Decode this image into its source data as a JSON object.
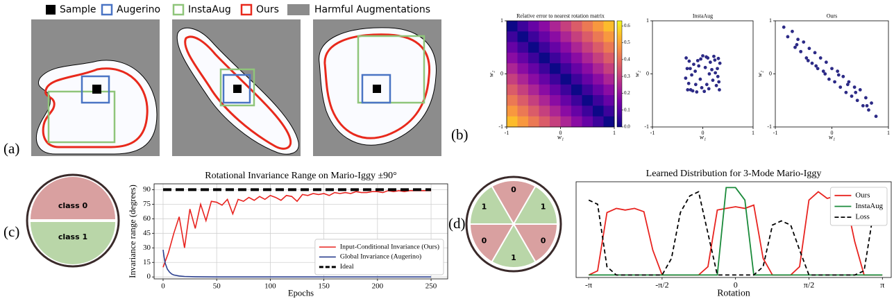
{
  "panel_labels": [
    "(a)",
    "(b)",
    "(c)",
    "(d)"
  ],
  "legend_a": [
    "Sample",
    "Augerino",
    "InstaAug",
    "Ours",
    "Harmful Augmentations"
  ],
  "circle_c": [
    "class 0",
    "class 1"
  ],
  "circle_d": [
    "0",
    "1",
    "0",
    "1",
    "0",
    "1"
  ],
  "chart_data": [
    {
      "type": "heatmap",
      "title": "Relative error to nearest rotation matrix",
      "xlabel": "w₁",
      "ylabel": "w₂",
      "xlim": [
        -1,
        1
      ],
      "ylim": [
        -1,
        1
      ],
      "xticks": [
        -1,
        0,
        1
      ],
      "yticks": [
        -1,
        0,
        1
      ],
      "colormap": "plasma",
      "clim": [
        0,
        0.63
      ],
      "cticks": [
        {
          "value": 0,
          "label": "0.0"
        },
        {
          "value": 0.1,
          "label": "0.1"
        },
        {
          "value": 0.2,
          "label": "0.2"
        },
        {
          "value": 0.3,
          "label": "0.3"
        },
        {
          "value": 0.4,
          "label": "0.4"
        },
        {
          "value": 0.5,
          "label": "0.5"
        },
        {
          "value": 0.6,
          "label": "0.6"
        }
      ],
      "values": [
        [
          0,
          0.06,
          0.12,
          0.18,
          0.24,
          0.3,
          0.36,
          0.42,
          0.48,
          0.54
        ],
        [
          0.06,
          0,
          0.06,
          0.12,
          0.18,
          0.24,
          0.3,
          0.36,
          0.42,
          0.48
        ],
        [
          0.12,
          0.06,
          0,
          0.06,
          0.12,
          0.18,
          0.24,
          0.3,
          0.36,
          0.42
        ],
        [
          0.18,
          0.12,
          0.06,
          0,
          0.06,
          0.12,
          0.18,
          0.24,
          0.3,
          0.36
        ],
        [
          0.24,
          0.18,
          0.12,
          0.06,
          0,
          0.06,
          0.12,
          0.18,
          0.24,
          0.3
        ],
        [
          0.3,
          0.24,
          0.18,
          0.12,
          0.06,
          0,
          0.06,
          0.12,
          0.18,
          0.24
        ],
        [
          0.36,
          0.3,
          0.24,
          0.18,
          0.12,
          0.06,
          0,
          0.06,
          0.12,
          0.18
        ],
        [
          0.42,
          0.36,
          0.3,
          0.24,
          0.18,
          0.12,
          0.06,
          0,
          0.06,
          0.12
        ],
        [
          0.48,
          0.42,
          0.36,
          0.3,
          0.24,
          0.18,
          0.12,
          0.06,
          0,
          0.06
        ],
        [
          0.54,
          0.48,
          0.42,
          0.36,
          0.3,
          0.24,
          0.18,
          0.12,
          0.06,
          0
        ]
      ]
    },
    {
      "type": "scatter",
      "title": "InstaAug",
      "xlabel": "w₁",
      "ylabel": "w₂",
      "color": "#2c2a86",
      "xlim": [
        -1,
        1
      ],
      "ylim": [
        -1,
        1
      ],
      "xticks": [
        -1,
        0,
        1
      ],
      "yticks": [
        -1,
        0,
        1
      ],
      "x": [
        -0.33,
        -0.2,
        0.05,
        0.3,
        -0.1,
        0.22,
        -0.28,
        0.12,
        -0.05,
        0.34,
        -0.15,
        0.27,
        0.0,
        -0.31,
        0.18,
        -0.24,
        0.08,
        0.31,
        -0.12,
        0.15,
        -0.34,
        0.25,
        -0.02,
        0.1,
        -0.18,
        0.33,
        -0.27,
        0.2,
        -0.08,
        0.29,
        -0.22,
        0.03,
        0.13,
        -0.3,
        0.24,
        -0.14,
        0.07,
        -0.04,
        0.32,
        -0.25
      ],
      "y": [
        0.3,
        -0.32,
        0.12,
        -0.05,
        0.25,
        0.33,
        -0.18,
        -0.28,
        -0.1,
        0.2,
        0.05,
        -0.22,
        0.34,
        0.1,
        0.08,
        -0.3,
        -0.2,
        0.29,
        -0.34,
        0.22,
        -0.08,
        0.02,
        -0.26,
        0.3,
        0.18,
        -0.3,
        0.24,
        -0.12,
        0.15,
        0.1,
        -0.02,
        -0.33,
        0.0,
        -0.3,
        0.26,
        -0.2,
        0.32,
        0.28,
        -0.15,
        0.1
      ]
    },
    {
      "type": "scatter",
      "title": "Ours",
      "xlabel": "w₁",
      "ylabel": "w₂",
      "color": "#2c2a86",
      "xlim": [
        -1,
        1
      ],
      "ylim": [
        -1,
        1
      ],
      "xticks": [
        -1,
        0,
        1
      ],
      "yticks": [
        -1,
        0,
        1
      ],
      "x": [
        -0.85,
        -0.78,
        -0.7,
        -0.65,
        -0.6,
        -0.55,
        -0.5,
        -0.45,
        -0.4,
        -0.35,
        -0.3,
        -0.25,
        -0.2,
        -0.15,
        -0.1,
        -0.05,
        0,
        0.05,
        0.1,
        0.15,
        0.2,
        0.25,
        0.3,
        0.35,
        0.4,
        0.45,
        0.5,
        0.55,
        0.6,
        0.65,
        0.7,
        0.78,
        -0.42,
        -0.12,
        0.12,
        0.42,
        -0.62,
        0.62,
        -0.28,
        0.28
      ],
      "y": [
        0.88,
        0.7,
        0.8,
        0.5,
        0.65,
        0.42,
        0.6,
        0.3,
        0.48,
        0.2,
        0.4,
        0.1,
        0.3,
        0.05,
        0.22,
        -0.1,
        0.1,
        -0.15,
        0.05,
        -0.25,
        -0.05,
        -0.35,
        -0.15,
        -0.42,
        -0.25,
        -0.5,
        -0.3,
        -0.6,
        -0.45,
        -0.68,
        -0.55,
        -0.8,
        0.25,
        0.0,
        -0.02,
        -0.35,
        0.55,
        -0.6,
        0.15,
        -0.2
      ]
    },
    {
      "type": "line",
      "title": "Rotational Invariance Range on Mario-Iggy ±90°",
      "xlabel": "Epochs",
      "ylabel": "Invariance range (degrees)",
      "xlim": [
        -8.4,
        265.5
      ],
      "ylim": [
        -2,
        96
      ],
      "xticks": [
        0,
        50,
        100,
        150,
        200,
        250
      ],
      "yticks": [
        0,
        15,
        30,
        45,
        60,
        75,
        90
      ],
      "grid": true,
      "legend": "lower right",
      "series": [
        {
          "name": "Input-Conditional Invariance (Ours)",
          "color": "#e8231f",
          "linewidth": 1.6,
          "linestyle": "solid",
          "x": [
            0,
            5,
            10,
            15,
            20,
            25,
            30,
            35,
            40,
            45,
            50,
            55,
            60,
            65,
            70,
            75,
            80,
            85,
            90,
            95,
            100,
            105,
            110,
            115,
            120,
            125,
            130,
            135,
            140,
            145,
            150,
            155,
            160,
            165,
            170,
            175,
            180,
            185,
            190,
            195,
            200,
            205,
            210,
            215,
            220,
            225,
            230,
            235,
            240,
            245,
            250
          ],
          "values": [
            10,
            25,
            45,
            62,
            30,
            70,
            50,
            75,
            58,
            78,
            77,
            74,
            80,
            65,
            80,
            78,
            82,
            79,
            83,
            80,
            84,
            82,
            79,
            84,
            83,
            78,
            85,
            84,
            86,
            85,
            86,
            84,
            87,
            86,
            87,
            86,
            88,
            87,
            87,
            88,
            88,
            87,
            89,
            88,
            89,
            88,
            89,
            89,
            89,
            89,
            89
          ]
        },
        {
          "name": "Global Invariance (Augerino)",
          "color": "#2b3f8f",
          "linewidth": 1.6,
          "linestyle": "solid",
          "x": [
            0,
            1,
            2,
            4,
            6,
            8,
            10,
            15,
            20,
            30,
            50,
            100,
            150,
            200,
            250
          ],
          "values": [
            28,
            20,
            14,
            8,
            5,
            3,
            2,
            1,
            0.5,
            0.2,
            0,
            0,
            0,
            0,
            0
          ]
        },
        {
          "name": "Ideal",
          "color": "#000000",
          "linewidth": 4,
          "linestyle": "dashed",
          "x": [
            0,
            250
          ],
          "values": [
            90,
            90
          ]
        }
      ]
    },
    {
      "type": "line",
      "title": "Learned Distribution for 3-Mode Mario-Iggy",
      "xlabel": "Rotation",
      "xlim": [
        -3.41,
        3.33
      ],
      "ylim": [
        -0.03,
        1.12
      ],
      "legend": "upper right",
      "xticks": [
        {
          "value": -3.14159,
          "label": "-π"
        },
        {
          "value": -1.5708,
          "label": "-π/2"
        },
        0,
        {
          "value": 1.5708,
          "label": "π/2"
        },
        {
          "value": 3.14159,
          "label": "π"
        }
      ],
      "series": [
        {
          "name": "Ours",
          "color": "#e8231f",
          "linewidth": 1.8,
          "linestyle": "solid",
          "x": [
            -3.14,
            -2.95,
            -2.75,
            -2.55,
            -2.36,
            -2.16,
            -1.96,
            -1.77,
            -1.57,
            -1.37,
            -1.18,
            -0.98,
            -0.79,
            -0.59,
            -0.39,
            -0.2,
            0,
            0.2,
            0.39,
            0.59,
            0.79,
            0.98,
            1.18,
            1.37,
            1.57,
            1.77,
            1.96,
            2.16,
            2.36,
            2.55,
            2.75,
            2.95,
            3.14
          ],
          "values": [
            0,
            0.05,
            0.75,
            0.8,
            0.78,
            0.8,
            0.76,
            0.3,
            0,
            0,
            0,
            0,
            0,
            0.1,
            0.78,
            0.8,
            0.82,
            0.8,
            0.84,
            0.2,
            0,
            0,
            0,
            0.1,
            0.9,
            1.0,
            0.92,
            0.95,
            0.9,
            0.4,
            0,
            0,
            0
          ]
        },
        {
          "name": "InstaAug",
          "color": "#1a8a3a",
          "linewidth": 1.8,
          "linestyle": "solid",
          "x": [
            -3.14,
            -2.95,
            -2.75,
            -2.55,
            -2.36,
            -2.16,
            -1.96,
            -1.77,
            -1.57,
            -1.37,
            -1.18,
            -0.98,
            -0.79,
            -0.59,
            -0.39,
            -0.2,
            0,
            0.2,
            0.39,
            0.59,
            0.79,
            0.98,
            1.18,
            1.37,
            1.57,
            1.77,
            1.96,
            2.16,
            2.36,
            2.55,
            2.75,
            2.95,
            3.14
          ],
          "values": [
            0,
            0,
            0,
            0,
            0,
            0,
            0,
            0,
            0,
            0,
            0,
            0,
            0,
            0,
            0,
            1.05,
            1.05,
            0.9,
            0,
            0,
            0,
            0,
            0,
            0,
            0,
            0,
            0,
            0,
            0,
            0,
            0,
            0,
            0
          ]
        },
        {
          "name": "Loss",
          "color": "#000000",
          "linewidth": 1.8,
          "linestyle": "dashed",
          "x": [
            -3.14,
            -2.95,
            -2.75,
            -2.55,
            -2.36,
            -2.16,
            -1.96,
            -1.77,
            -1.57,
            -1.37,
            -1.18,
            -0.98,
            -0.79,
            -0.59,
            -0.39,
            -0.2,
            0,
            0.2,
            0.39,
            0.59,
            0.79,
            0.98,
            1.18,
            1.37,
            1.57,
            1.77,
            1.96,
            2.16,
            2.36,
            2.55,
            2.75,
            2.95,
            3.14
          ],
          "values": [
            0.9,
            0.85,
            0.1,
            0,
            0,
            0,
            0,
            0,
            0,
            0.2,
            0.75,
            0.95,
            1.0,
            0.5,
            0,
            0,
            0,
            0,
            0,
            0.1,
            0.6,
            0.65,
            0.6,
            0.3,
            0,
            0,
            0,
            0,
            0,
            0,
            0.05,
            0.75,
            0.9
          ]
        }
      ]
    }
  ]
}
